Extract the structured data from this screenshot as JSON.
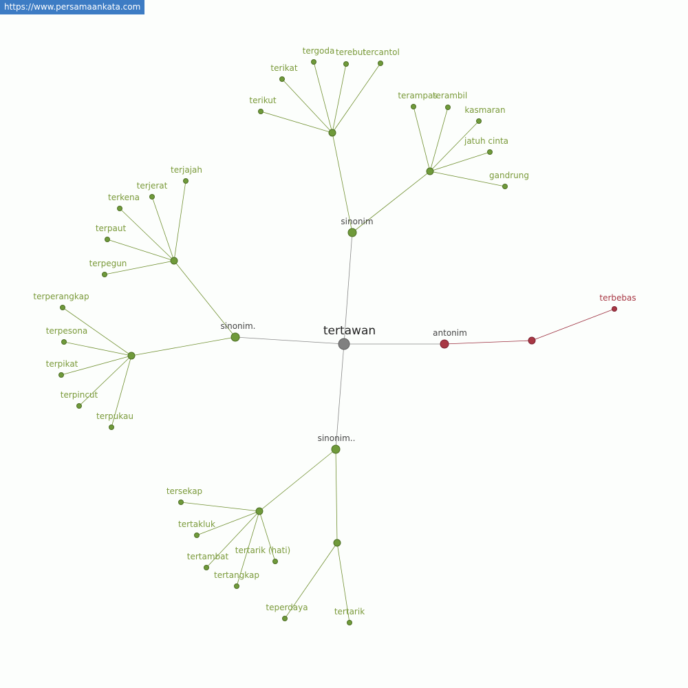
{
  "header": {
    "url": "https://www.persamaankata.com"
  },
  "nodes": [
    {
      "label": "tertawan"
    },
    {
      "label": "sinonim"
    },
    {
      "label": "terikut"
    },
    {
      "label": "terikat"
    },
    {
      "label": "tergoda"
    },
    {
      "label": "terebut"
    },
    {
      "label": "tercantol"
    },
    {
      "label": "terampas"
    },
    {
      "label": "terambil"
    },
    {
      "label": "kasmaran"
    },
    {
      "label": "jatuh cinta"
    },
    {
      "label": "gandrung"
    },
    {
      "label": "sinonim."
    },
    {
      "label": "terjajah"
    },
    {
      "label": "terjerat"
    },
    {
      "label": "terkena"
    },
    {
      "label": "terpaut"
    },
    {
      "label": "terpegun"
    },
    {
      "label": "terperangkap"
    },
    {
      "label": "terpesona"
    },
    {
      "label": "terpikat"
    },
    {
      "label": "terpincut"
    },
    {
      "label": "terpukau"
    },
    {
      "label": "sinonim.."
    },
    {
      "label": "tersekap"
    },
    {
      "label": "tertakluk"
    },
    {
      "label": "tertambat"
    },
    {
      "label": "tertangkap"
    },
    {
      "label": "tertarik (hati)"
    },
    {
      "label": "teperdaya"
    },
    {
      "label": "tertarik"
    },
    {
      "label": "antonim"
    },
    {
      "label": "terbebas"
    }
  ]
}
